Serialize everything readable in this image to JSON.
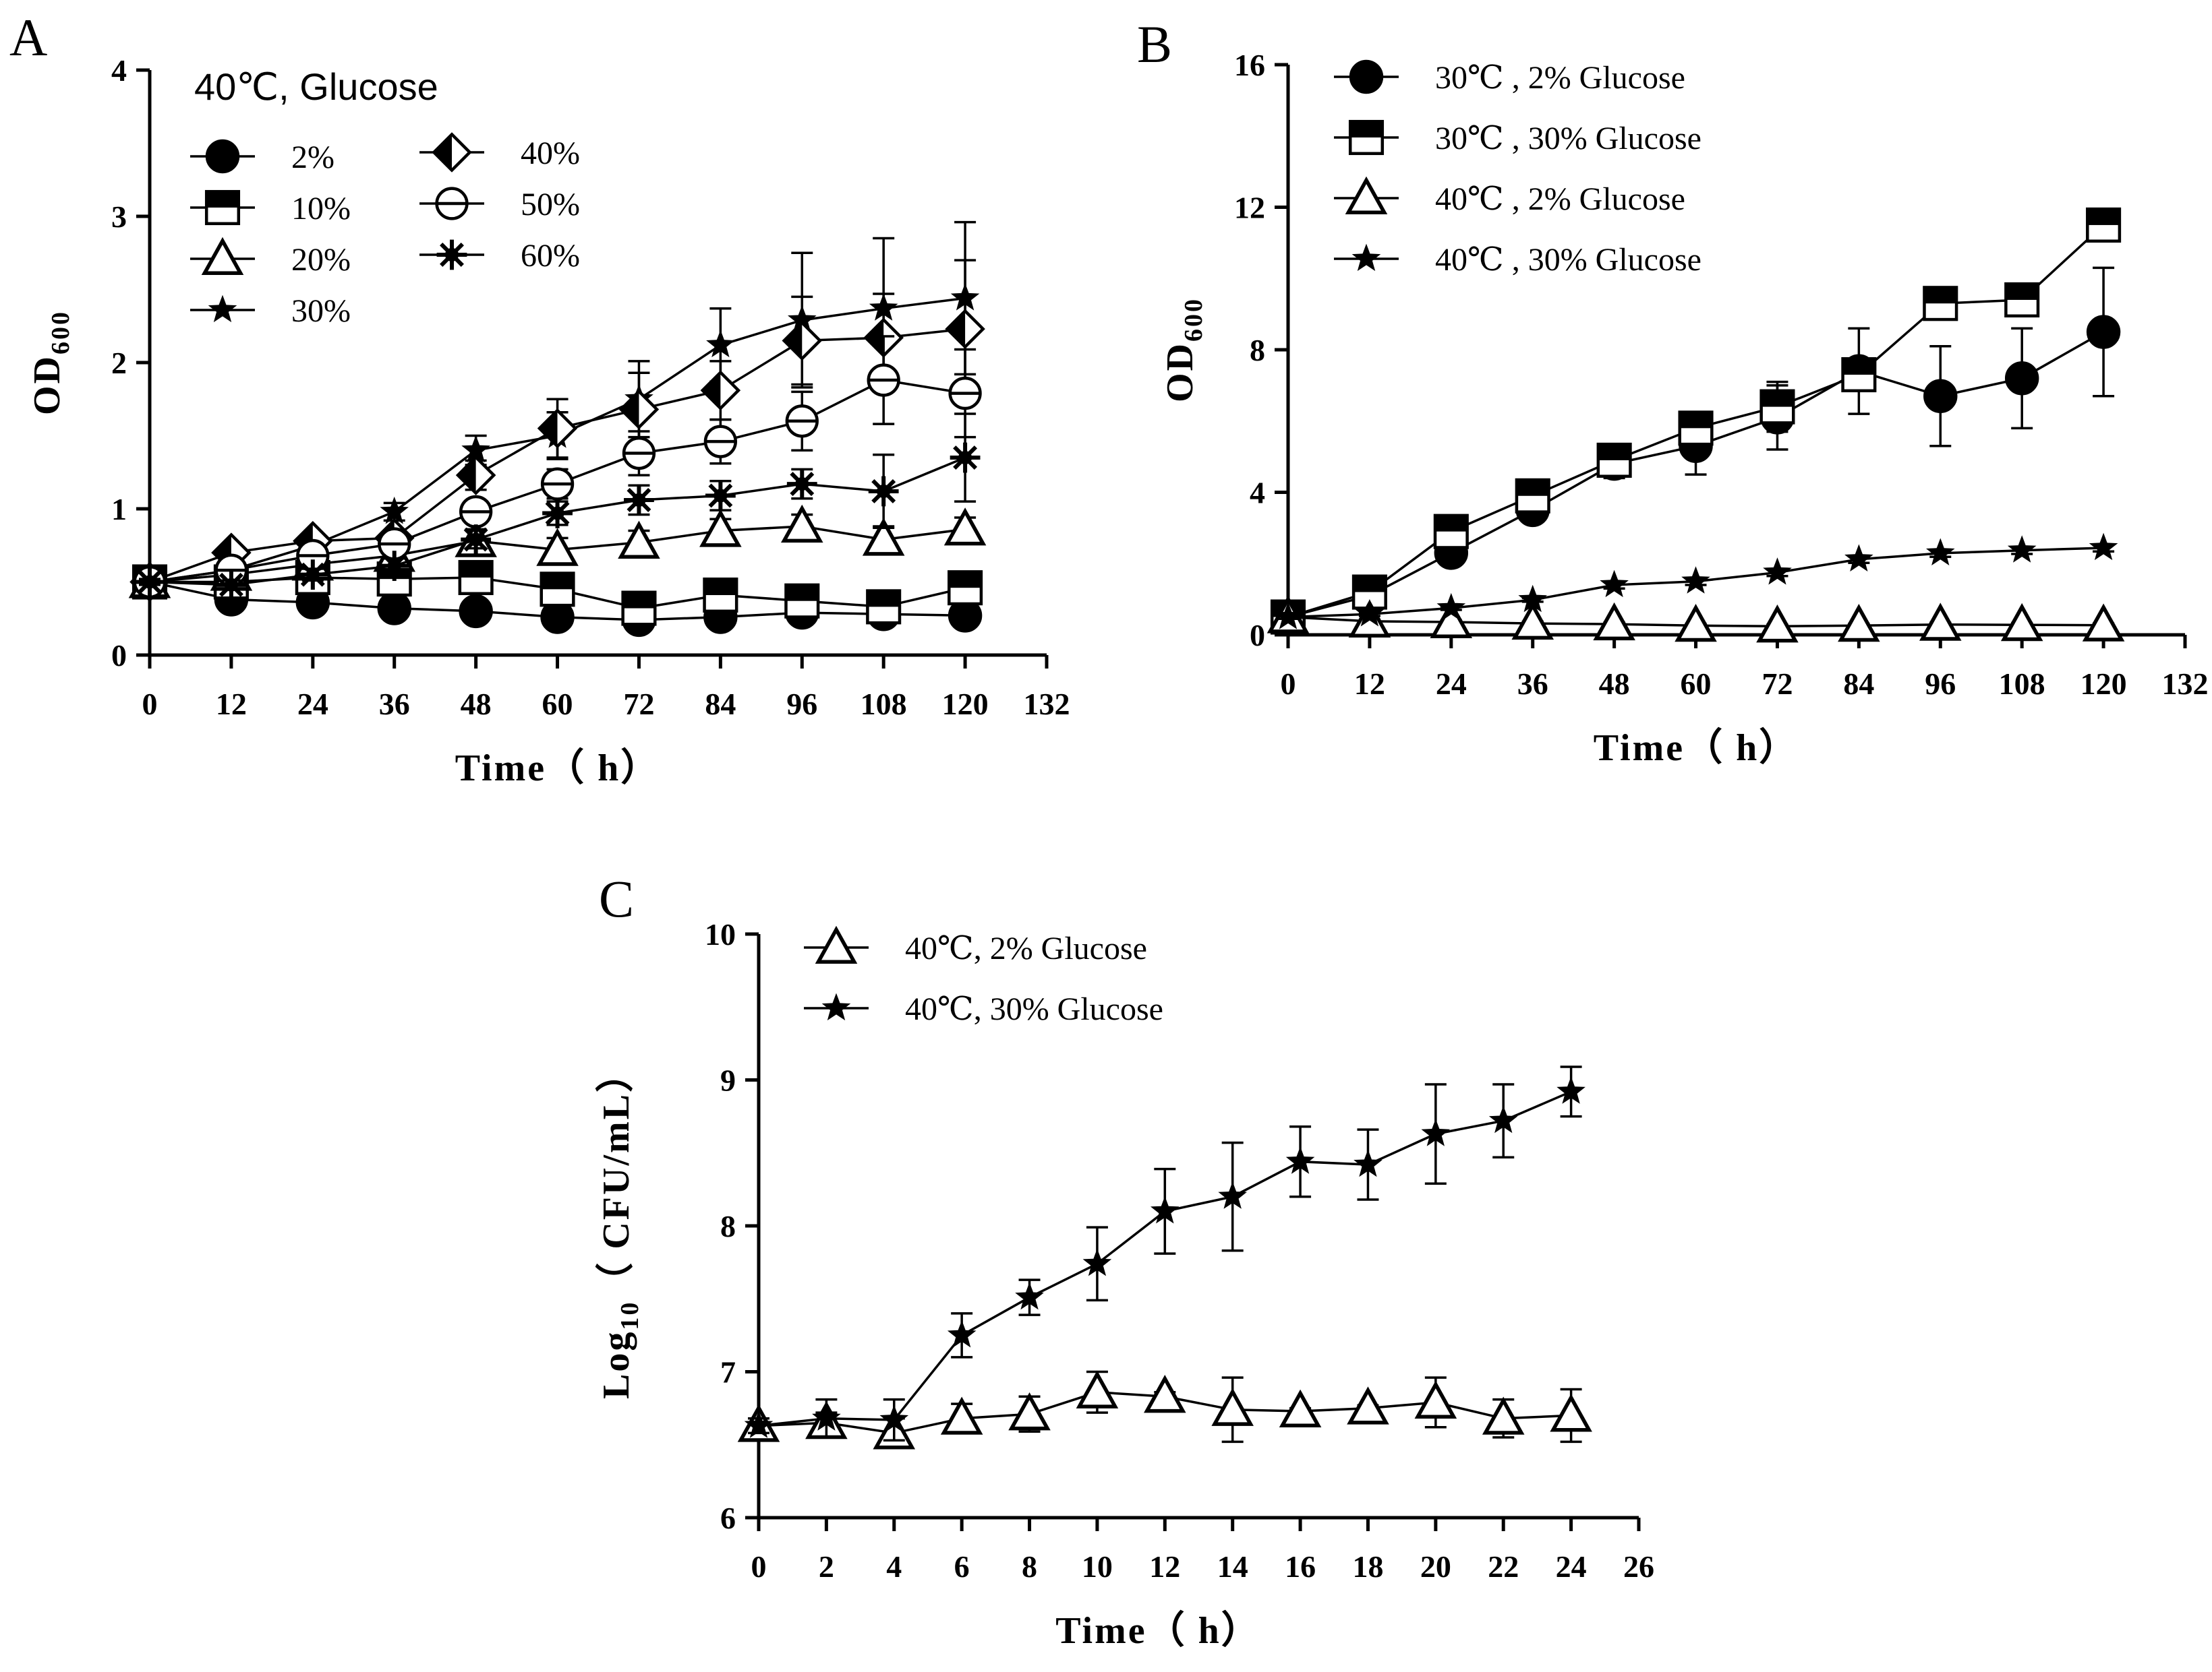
{
  "chart_data": [
    {
      "panel": "A",
      "type": "line",
      "xlabel": "Time（ h）",
      "ylabel": "OD",
      "ylabel_sub": "600",
      "xlim": [
        0,
        132
      ],
      "ylim": [
        0,
        4
      ],
      "x_ticks": [
        "0",
        "12",
        "24",
        "36",
        "48",
        "60",
        "72",
        "84",
        "96",
        "108",
        "120",
        "132"
      ],
      "y_ticks": [
        "0",
        "1",
        "2",
        "3",
        "4"
      ],
      "legend_title": "40℃, Glucose",
      "x": [
        0,
        12,
        24,
        36,
        48,
        60,
        72,
        84,
        96,
        108,
        120
      ],
      "series": [
        {
          "name": "2%",
          "marker": "circle",
          "values": [
            0.5,
            0.38,
            0.36,
            0.32,
            0.3,
            0.26,
            0.24,
            0.26,
            0.29,
            0.28,
            0.27
          ],
          "errors": [
            0.02,
            0.02,
            0.02,
            0.02,
            0.02,
            0.02,
            0.02,
            0.02,
            0.03,
            0.03,
            0.02
          ]
        },
        {
          "name": "10%",
          "marker": "half-square",
          "values": [
            0.5,
            0.5,
            0.53,
            0.52,
            0.53,
            0.45,
            0.32,
            0.41,
            0.37,
            0.33,
            0.46
          ],
          "errors": [
            0.02,
            0.03,
            0.03,
            0.03,
            0.03,
            0.03,
            0.04,
            0.04,
            0.04,
            0.06,
            0.05
          ]
        },
        {
          "name": "20%",
          "marker": "triangle-open",
          "values": [
            0.5,
            0.55,
            0.62,
            0.68,
            0.78,
            0.72,
            0.77,
            0.85,
            0.88,
            0.79,
            0.86
          ],
          "errors": [
            0.02,
            0.04,
            0.05,
            0.05,
            0.08,
            0.08,
            0.08,
            0.08,
            0.08,
            0.09,
            0.08
          ]
        },
        {
          "name": "30%",
          "marker": "star",
          "values": [
            0.5,
            0.58,
            0.75,
            0.98,
            1.4,
            1.5,
            1.75,
            2.12,
            2.29,
            2.37,
            2.44
          ],
          "errors": [
            0.02,
            0.04,
            0.05,
            0.06,
            0.1,
            0.16,
            0.26,
            0.25,
            0.46,
            0.48,
            0.52
          ]
        },
        {
          "name": "40%",
          "marker": "diamond-half",
          "values": [
            0.5,
            0.7,
            0.78,
            0.8,
            1.23,
            1.55,
            1.68,
            1.81,
            2.15,
            2.17,
            2.23
          ],
          "errors": [
            0.02,
            0.04,
            0.05,
            0.05,
            0.1,
            0.2,
            0.25,
            0.2,
            0.3,
            0.3,
            0.47
          ]
        },
        {
          "name": "50%",
          "marker": "circle-barred",
          "values": [
            0.5,
            0.58,
            0.68,
            0.76,
            0.98,
            1.17,
            1.38,
            1.46,
            1.6,
            1.88,
            1.79
          ],
          "errors": [
            0.02,
            0.04,
            0.05,
            0.05,
            0.07,
            0.1,
            0.15,
            0.15,
            0.2,
            0.3,
            0.3
          ]
        },
        {
          "name": "60%",
          "marker": "asterisk",
          "values": [
            0.5,
            0.48,
            0.55,
            0.61,
            0.79,
            0.97,
            1.06,
            1.09,
            1.17,
            1.12,
            1.35
          ],
          "errors": [
            0.02,
            0.03,
            0.04,
            0.05,
            0.06,
            0.08,
            0.1,
            0.1,
            0.1,
            0.25,
            0.3
          ]
        }
      ]
    },
    {
      "panel": "B",
      "type": "line",
      "xlabel": "Time（ h）",
      "ylabel": "OD",
      "ylabel_sub": "600",
      "xlim": [
        0,
        132
      ],
      "ylim": [
        0,
        16
      ],
      "x_ticks": [
        "0",
        "12",
        "24",
        "36",
        "48",
        "60",
        "72",
        "84",
        "96",
        "108",
        "120",
        "132"
      ],
      "y_ticks": [
        "0",
        "4",
        "8",
        "12",
        "16"
      ],
      "x": [
        0,
        12,
        24,
        36,
        48,
        60,
        72,
        84,
        96,
        108,
        120
      ],
      "series": [
        {
          "name": "30℃ , 2% Glucose",
          "marker": "circle",
          "values": [
            0.5,
            1.1,
            2.3,
            3.5,
            4.8,
            5.3,
            6.1,
            7.4,
            6.7,
            7.2,
            8.5
          ],
          "errors": [
            0.1,
            0.15,
            0.2,
            0.2,
            0.4,
            0.8,
            0.9,
            1.2,
            1.4,
            1.4,
            1.8
          ]
        },
        {
          "name": "30℃ , 30% Glucose",
          "marker": "half-square",
          "values": [
            0.5,
            1.2,
            2.9,
            3.9,
            4.9,
            5.8,
            6.4,
            7.3,
            9.3,
            9.4,
            11.5
          ],
          "errors": [
            0.1,
            0.15,
            0.15,
            0.15,
            0.25,
            0.2,
            0.7,
            0.3,
            0.4,
            0.2,
            0.2
          ]
        },
        {
          "name": "40℃ , 2% Glucose",
          "marker": "triangle-open",
          "values": [
            0.5,
            0.38,
            0.36,
            0.32,
            0.3,
            0.26,
            0.24,
            0.26,
            0.29,
            0.28,
            0.27
          ],
          "errors": [
            0.05,
            0.05,
            0.05,
            0.05,
            0.05,
            0.05,
            0.05,
            0.05,
            0.05,
            0.05,
            0.05
          ]
        },
        {
          "name": "40℃ , 30% Glucose",
          "marker": "star",
          "values": [
            0.5,
            0.58,
            0.75,
            0.98,
            1.4,
            1.5,
            1.75,
            2.12,
            2.29,
            2.37,
            2.44
          ],
          "errors": [
            0.05,
            0.05,
            0.05,
            0.05,
            0.1,
            0.1,
            0.1,
            0.1,
            0.1,
            0.1,
            0.1
          ]
        }
      ]
    },
    {
      "panel": "C",
      "type": "line",
      "xlabel": "Time（ h）",
      "ylabel": "Log",
      "ylabel_sub": "10",
      "ylabel_rest": "（ CFU/mL）",
      "xlim": [
        0,
        26
      ],
      "ylim": [
        6,
        10
      ],
      "x_ticks": [
        "0",
        "2",
        "4",
        "6",
        "8",
        "10",
        "12",
        "14",
        "16",
        "18",
        "20",
        "22",
        "24",
        "26"
      ],
      "y_ticks": [
        "6",
        "7",
        "8",
        "9",
        "10"
      ],
      "x": [
        0,
        2,
        4,
        6,
        8,
        10,
        12,
        14,
        16,
        18,
        20,
        22,
        24
      ],
      "series": [
        {
          "name": "40℃, 2% Glucose",
          "marker": "triangle-open",
          "values": [
            6.63,
            6.65,
            6.58,
            6.68,
            6.71,
            6.86,
            6.83,
            6.74,
            6.73,
            6.75,
            6.79,
            6.68,
            6.7
          ],
          "errors": [
            0.05,
            0.07,
            0.1,
            0.1,
            0.12,
            0.14,
            0.03,
            0.22,
            0.02,
            0.02,
            0.17,
            0.13,
            0.18
          ]
        },
        {
          "name": "40℃, 30% Glucose",
          "marker": "star",
          "values": [
            6.63,
            6.68,
            6.67,
            7.25,
            7.51,
            7.74,
            8.1,
            8.2,
            8.44,
            8.42,
            8.63,
            8.72,
            8.92
          ],
          "errors": [
            0.05,
            0.13,
            0.14,
            0.15,
            0.12,
            0.25,
            0.29,
            0.37,
            0.24,
            0.24,
            0.34,
            0.25,
            0.17
          ]
        }
      ]
    }
  ],
  "panel_labels": [
    "A",
    "B",
    "C"
  ]
}
